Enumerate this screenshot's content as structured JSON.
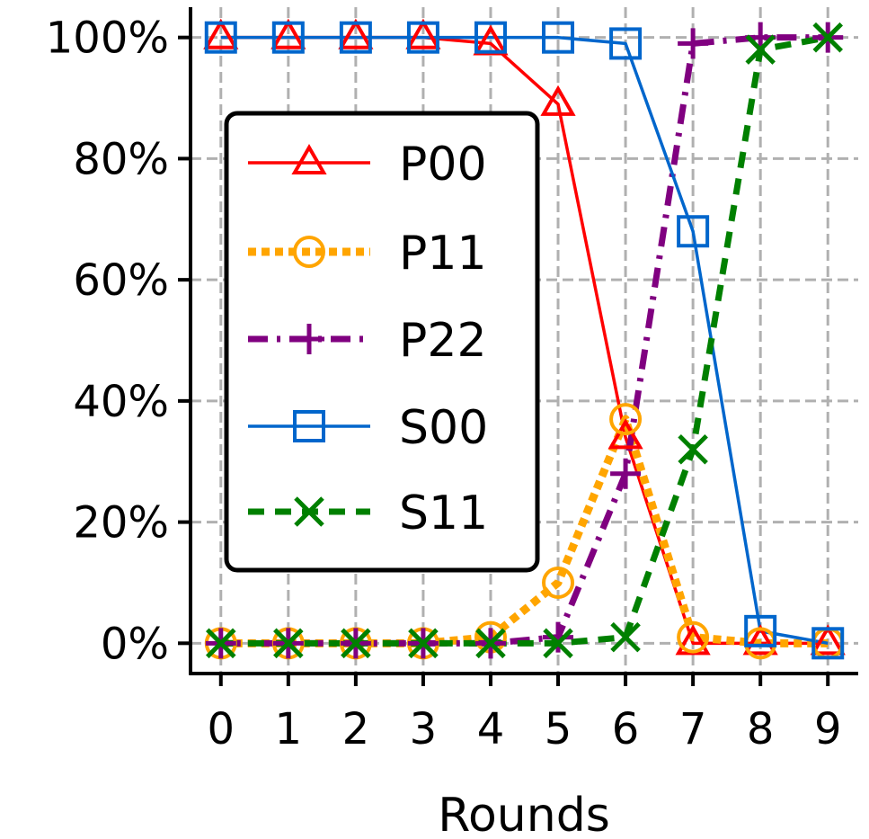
{
  "chart_data": {
    "type": "line",
    "title": "",
    "xlabel": "Rounds",
    "ylabel": "",
    "x": [
      0,
      1,
      2,
      3,
      4,
      5,
      6,
      7,
      8,
      9
    ],
    "xlim": [
      -0.45,
      9.45
    ],
    "ylim": [
      -5,
      105
    ],
    "yticks": [
      0,
      20,
      40,
      60,
      80,
      100
    ],
    "ytick_labels": [
      "0%",
      "20%",
      "40%",
      "60%",
      "80%",
      "100%"
    ],
    "xtick_labels": [
      "0",
      "1",
      "2",
      "3",
      "4",
      "5",
      "6",
      "7",
      "8",
      "9"
    ],
    "grid": true,
    "legend_position": "center-left",
    "series": [
      {
        "name": "P00",
        "color": "#ff0000",
        "marker": "triangle",
        "style": "solid",
        "values": [
          100,
          100,
          100,
          100,
          99,
          89,
          34,
          0,
          0,
          0
        ]
      },
      {
        "name": "P11",
        "color": "#ffa500",
        "marker": "circle",
        "style": "dotted",
        "values": [
          0,
          0,
          0,
          0,
          1,
          10,
          37,
          1,
          0,
          0
        ]
      },
      {
        "name": "P22",
        "color": "#800080",
        "marker": "plus",
        "style": "dashdot",
        "values": [
          0,
          0,
          0,
          0,
          0,
          1,
          28,
          99,
          100,
          100
        ]
      },
      {
        "name": "S00",
        "color": "#0066cc",
        "marker": "square",
        "style": "solid",
        "values": [
          100,
          100,
          100,
          100,
          100,
          100,
          99,
          68,
          2,
          0
        ]
      },
      {
        "name": "S11",
        "color": "#008000",
        "marker": "x",
        "style": "dashed",
        "values": [
          0,
          0,
          0,
          0,
          0,
          0,
          1,
          32,
          98,
          100
        ]
      }
    ]
  }
}
